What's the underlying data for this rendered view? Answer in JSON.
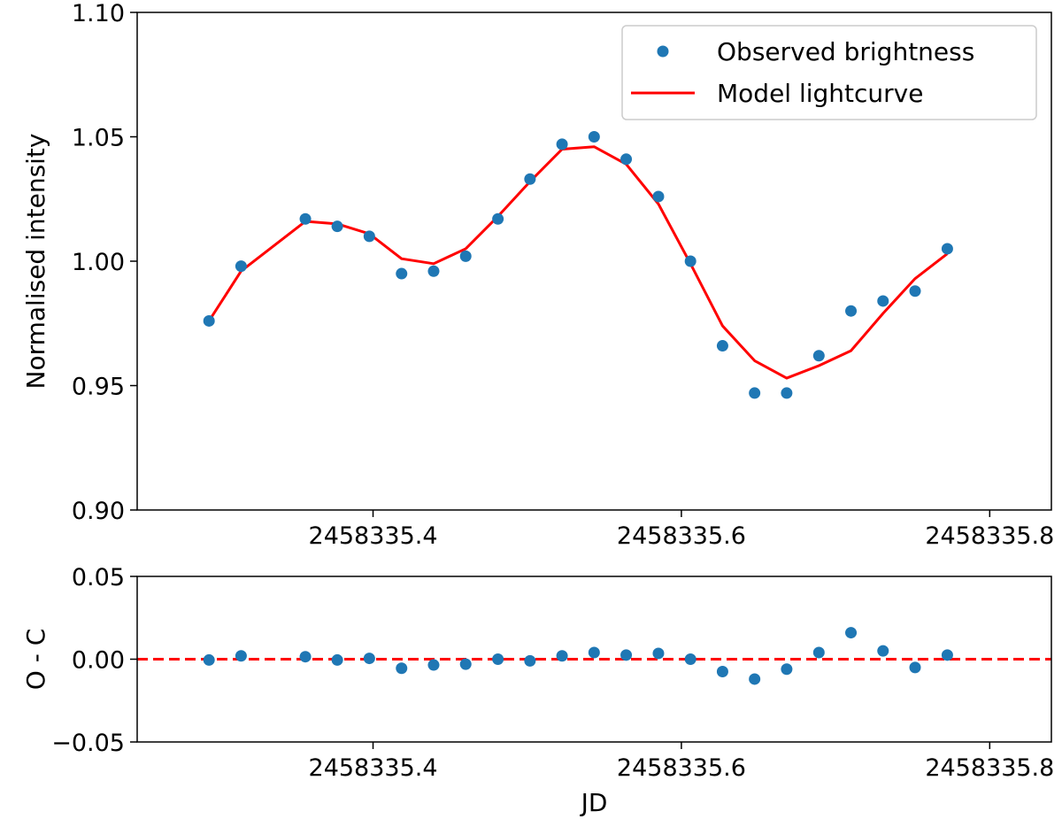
{
  "chart_data": [
    {
      "type": "scatter",
      "panel": "main",
      "title": "",
      "xlabel": "",
      "ylabel": "Normalised intensity",
      "xlim": [
        2458335.247,
        2458335.84
      ],
      "ylim": [
        0.9,
        1.1
      ],
      "xticks": [
        2458335.4,
        2458335.6,
        2458335.8
      ],
      "xtick_labels": [
        "2458335.4",
        "2458335.6",
        "2458335.8"
      ],
      "yticks": [
        0.9,
        0.95,
        1.0,
        1.05,
        1.1
      ],
      "ytick_labels": [
        "0.90",
        "0.95",
        "1.00",
        "1.05",
        "1.10"
      ],
      "grid": false,
      "legend_position": "top-right",
      "series": [
        {
          "name": "Observed brightness",
          "kind": "scatter",
          "color": "#1f77b4",
          "x": [
            2458335.2936,
            2458335.3144,
            2458335.3561,
            2458335.3768,
            2458335.3976,
            2458335.4185,
            2458335.4393,
            2458335.4601,
            2458335.481,
            2458335.5018,
            2458335.5226,
            2458335.5434,
            2458335.5642,
            2458335.5851,
            2458335.6059,
            2458335.6267,
            2458335.6475,
            2458335.6683,
            2458335.6892,
            2458335.71,
            2458335.7308,
            2458335.7516,
            2458335.7725
          ],
          "y": [
            0.976,
            0.998,
            1.017,
            1.014,
            1.01,
            0.995,
            0.996,
            1.002,
            1.017,
            1.033,
            1.047,
            1.05,
            1.041,
            1.026,
            1.0,
            0.966,
            0.947,
            0.947,
            0.962,
            0.98,
            0.984,
            0.988,
            1.005
          ]
        },
        {
          "name": "Model lightcurve",
          "kind": "line",
          "color": "#ff0000",
          "x": [
            2458335.2936,
            2458335.3144,
            2458335.3561,
            2458335.3768,
            2458335.3976,
            2458335.4185,
            2458335.4393,
            2458335.4601,
            2458335.481,
            2458335.5018,
            2458335.5226,
            2458335.5434,
            2458335.5642,
            2458335.5851,
            2458335.6059,
            2458335.6267,
            2458335.6475,
            2458335.6683,
            2458335.6892,
            2458335.71,
            2458335.7308,
            2458335.7516,
            2458335.7725
          ],
          "y": [
            0.976,
            0.996,
            1.016,
            1.015,
            1.011,
            1.001,
            0.999,
            1.005,
            1.018,
            1.032,
            1.045,
            1.046,
            1.039,
            1.023,
            0.999,
            0.974,
            0.96,
            0.953,
            0.958,
            0.964,
            0.979,
            0.993,
            1.003
          ]
        }
      ]
    },
    {
      "type": "scatter",
      "panel": "residuals",
      "title": "",
      "xlabel": "JD",
      "ylabel": "O - C",
      "xlim": [
        2458335.247,
        2458335.84
      ],
      "ylim": [
        -0.05,
        0.05
      ],
      "xticks": [
        2458335.4,
        2458335.6,
        2458335.8
      ],
      "xtick_labels": [
        "2458335.4",
        "2458335.6",
        "2458335.8"
      ],
      "yticks": [
        -0.05,
        0.0,
        0.05
      ],
      "ytick_labels": [
        "−0.05",
        "0.00",
        "0.05"
      ],
      "grid": false,
      "reference_line": {
        "y": 0.0,
        "style": "dashed",
        "color": "#ff0000"
      },
      "series": [
        {
          "kind": "scatter",
          "color": "#1f77b4",
          "x": [
            2458335.2936,
            2458335.3144,
            2458335.3561,
            2458335.3768,
            2458335.3976,
            2458335.4185,
            2458335.4393,
            2458335.4601,
            2458335.481,
            2458335.5018,
            2458335.5226,
            2458335.5434,
            2458335.5642,
            2458335.5851,
            2458335.6059,
            2458335.6267,
            2458335.6475,
            2458335.6683,
            2458335.6892,
            2458335.71,
            2458335.7308,
            2458335.7516,
            2458335.7725
          ],
          "y": [
            -0.0005,
            0.002,
            0.0015,
            -0.0005,
            0.0005,
            -0.0055,
            -0.0035,
            -0.003,
            0.0,
            -0.001,
            0.002,
            0.004,
            0.0025,
            0.0035,
            0.0,
            -0.0075,
            -0.012,
            -0.006,
            0.004,
            0.016,
            0.005,
            -0.005,
            0.0025
          ]
        }
      ]
    }
  ]
}
